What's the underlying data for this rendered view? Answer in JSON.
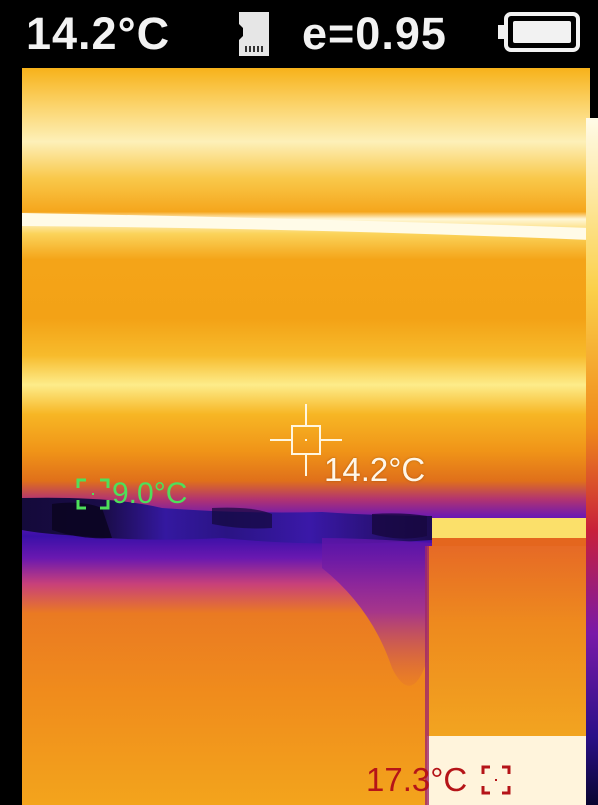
{
  "status": {
    "center_temp": "14.2°C",
    "emissivity": "e=0.95"
  },
  "icons": {
    "storage": "sd-card-icon",
    "battery": "battery-full-icon"
  },
  "readings": {
    "center": "14.2°C",
    "min": "9.0°C",
    "max": "17.3°C"
  },
  "colors": {
    "status_text": "#f2f2f2",
    "center_label": "#fff6e8",
    "min_label": "#4ee05a",
    "max_label": "#b51418",
    "palette_cold": "#1a0a60",
    "palette_mid": "#8a1aa8",
    "palette_warm": "#f39a10",
    "palette_hot": "#fff8d0"
  }
}
